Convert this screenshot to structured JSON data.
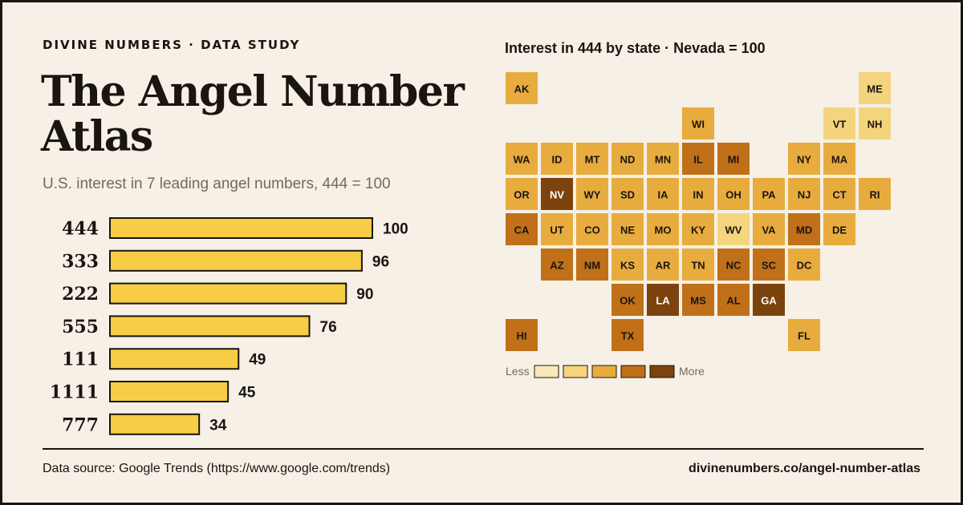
{
  "header": {
    "eyebrow": "DIVINE NUMBERS · DATA STUDY",
    "title": "The Angel Number Atlas",
    "subtitle": "U.S. interest in 7 leading angel numbers, 444 = 100"
  },
  "chart_data": [
    {
      "type": "bar",
      "orientation": "horizontal",
      "title": "The Angel Number Atlas",
      "subtitle": "U.S. interest in 7 leading angel numbers, 444 = 100",
      "categories": [
        "444",
        "333",
        "222",
        "555",
        "111",
        "1111",
        "777"
      ],
      "values": [
        100,
        96,
        90,
        76,
        49,
        45,
        34
      ],
      "xlim": [
        0,
        100
      ],
      "bar_color": "#f7cd46",
      "grid": false
    },
    {
      "type": "heatmap",
      "title": "Interest in 444 by state · Nevada = 100",
      "legend": {
        "low_label": "Less",
        "high_label": "More",
        "colors": [
          "#fbe8b8",
          "#f4d57d",
          "#e8ac3e",
          "#c07018",
          "#7d430e"
        ]
      },
      "states": [
        {
          "label": "AK",
          "level": 3
        },
        {
          "label": "ME",
          "level": 2
        },
        {
          "label": "WI",
          "level": 3
        },
        {
          "label": "VT",
          "level": 2
        },
        {
          "label": "NH",
          "level": 2
        },
        {
          "label": "WA",
          "level": 3
        },
        {
          "label": "ID",
          "level": 3
        },
        {
          "label": "MT",
          "level": 3
        },
        {
          "label": "ND",
          "level": 3
        },
        {
          "label": "MN",
          "level": 3
        },
        {
          "label": "IL",
          "level": 4
        },
        {
          "label": "MI",
          "level": 4
        },
        {
          "label": "NY",
          "level": 3
        },
        {
          "label": "MA",
          "level": 3
        },
        {
          "label": "OR",
          "level": 3
        },
        {
          "label": "NV",
          "level": 5
        },
        {
          "label": "WY",
          "level": 3
        },
        {
          "label": "SD",
          "level": 3
        },
        {
          "label": "IA",
          "level": 3
        },
        {
          "label": "IN",
          "level": 3
        },
        {
          "label": "OH",
          "level": 3
        },
        {
          "label": "PA",
          "level": 3
        },
        {
          "label": "NJ",
          "level": 3
        },
        {
          "label": "CT",
          "level": 3
        },
        {
          "label": "RI",
          "level": 3
        },
        {
          "label": "CA",
          "level": 4
        },
        {
          "label": "UT",
          "level": 3
        },
        {
          "label": "CO",
          "level": 3
        },
        {
          "label": "NE",
          "level": 3
        },
        {
          "label": "MO",
          "level": 3
        },
        {
          "label": "KY",
          "level": 3
        },
        {
          "label": "WV",
          "level": 2
        },
        {
          "label": "VA",
          "level": 3
        },
        {
          "label": "MD",
          "level": 4
        },
        {
          "label": "DE",
          "level": 3
        },
        {
          "label": "AZ",
          "level": 4
        },
        {
          "label": "NM",
          "level": 4
        },
        {
          "label": "KS",
          "level": 3
        },
        {
          "label": "AR",
          "level": 3
        },
        {
          "label": "TN",
          "level": 3
        },
        {
          "label": "NC",
          "level": 4
        },
        {
          "label": "SC",
          "level": 4
        },
        {
          "label": "DC",
          "level": 3
        },
        {
          "label": "OK",
          "level": 4
        },
        {
          "label": "LA",
          "level": 5
        },
        {
          "label": "MS",
          "level": 4
        },
        {
          "label": "AL",
          "level": 4
        },
        {
          "label": "GA",
          "level": 5
        },
        {
          "label": "HI",
          "level": 4
        },
        {
          "label": "TX",
          "level": 4
        },
        {
          "label": "FL",
          "level": 3
        }
      ]
    }
  ],
  "footer": {
    "source": "Data source: Google Trends (https://www.google.com/trends)",
    "url": "divinenumbers.co/angel-number-atlas"
  }
}
